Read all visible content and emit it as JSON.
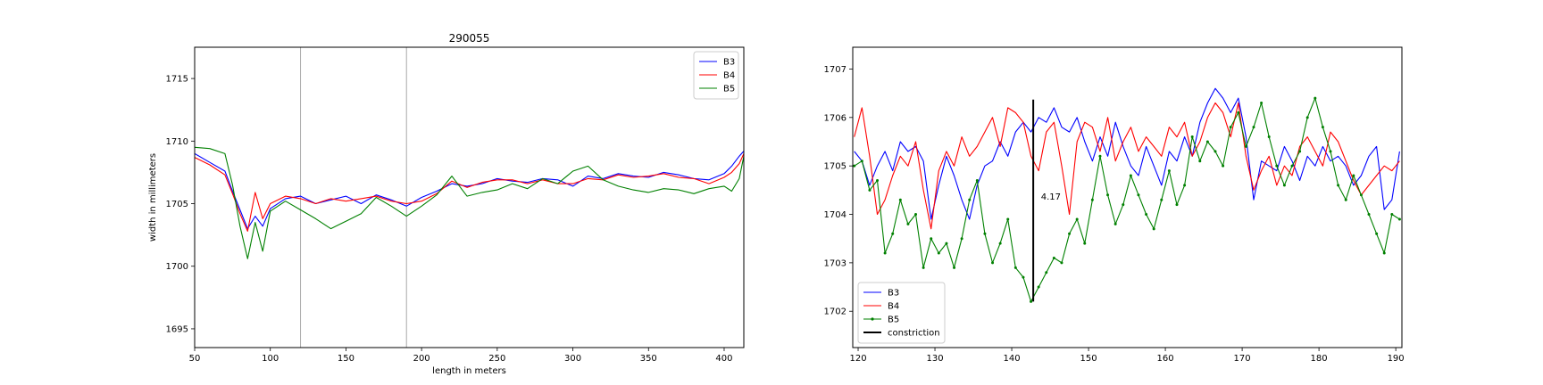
{
  "chart_data": [
    {
      "type": "line",
      "title": "290055",
      "xlabel": "length in meters",
      "ylabel": "width in millimeters",
      "xlim": [
        50,
        413
      ],
      "ylim": [
        1693.5,
        1717.5
      ],
      "xticks": [
        50,
        100,
        150,
        200,
        250,
        300,
        350,
        400
      ],
      "yticks": [
        1695,
        1700,
        1705,
        1710,
        1715
      ],
      "xtick_labels": [
        "50",
        "100",
        "150",
        "200",
        "250",
        "300",
        "350",
        "400"
      ],
      "ytick_labels": [
        "1695",
        "1700",
        "1705",
        "1710",
        "1715"
      ],
      "vlines": [
        120,
        190
      ],
      "grid": false,
      "legend_position": "top-right",
      "series": [
        {
          "name": "B3",
          "color": "#0000ff",
          "x": [
            50,
            60,
            70,
            75,
            80,
            85,
            90,
            95,
            100,
            110,
            120,
            130,
            140,
            150,
            160,
            170,
            180,
            190,
            200,
            210,
            220,
            230,
            240,
            250,
            260,
            270,
            280,
            290,
            300,
            310,
            320,
            330,
            340,
            350,
            360,
            370,
            380,
            390,
            400,
            405,
            410,
            413
          ],
          "values": [
            1709.0,
            1708.3,
            1707.6,
            1706.0,
            1704.5,
            1703.0,
            1704.0,
            1703.2,
            1704.6,
            1705.4,
            1705.6,
            1705.0,
            1705.3,
            1705.6,
            1705.0,
            1705.7,
            1705.3,
            1704.8,
            1705.5,
            1706.0,
            1706.6,
            1706.4,
            1706.6,
            1707.0,
            1706.8,
            1706.7,
            1707.0,
            1706.9,
            1706.4,
            1707.2,
            1707.0,
            1707.4,
            1707.2,
            1707.1,
            1707.5,
            1707.3,
            1707.0,
            1706.9,
            1707.4,
            1708.0,
            1708.8,
            1709.2
          ]
        },
        {
          "name": "B4",
          "color": "#ff0000",
          "x": [
            50,
            60,
            70,
            75,
            80,
            85,
            90,
            95,
            100,
            110,
            120,
            130,
            140,
            150,
            160,
            170,
            180,
            190,
            200,
            210,
            220,
            230,
            240,
            250,
            260,
            270,
            280,
            290,
            300,
            310,
            320,
            330,
            340,
            350,
            360,
            370,
            380,
            390,
            400,
            405,
            410,
            413
          ],
          "values": [
            1708.7,
            1708.1,
            1707.3,
            1705.8,
            1704.2,
            1702.8,
            1705.9,
            1703.8,
            1705.0,
            1705.6,
            1705.4,
            1705.0,
            1705.4,
            1705.2,
            1705.4,
            1705.6,
            1705.2,
            1705.0,
            1705.2,
            1705.8,
            1706.8,
            1706.3,
            1706.7,
            1706.9,
            1706.9,
            1706.6,
            1706.9,
            1706.6,
            1706.6,
            1707.0,
            1706.9,
            1707.3,
            1707.1,
            1707.2,
            1707.4,
            1707.1,
            1707.0,
            1706.6,
            1707.1,
            1707.5,
            1708.2,
            1709.0
          ]
        },
        {
          "name": "B5",
          "color": "#008000",
          "x": [
            50,
            60,
            70,
            75,
            80,
            85,
            90,
            95,
            100,
            110,
            120,
            130,
            140,
            150,
            160,
            170,
            180,
            190,
            200,
            210,
            220,
            230,
            240,
            250,
            260,
            270,
            280,
            290,
            300,
            310,
            320,
            330,
            340,
            350,
            360,
            370,
            380,
            390,
            400,
            405,
            410,
            413
          ],
          "values": [
            1709.5,
            1709.4,
            1709.0,
            1706.5,
            1703.2,
            1700.6,
            1703.5,
            1701.2,
            1704.4,
            1705.2,
            1704.5,
            1703.8,
            1703.0,
            1703.6,
            1704.2,
            1705.5,
            1704.8,
            1704.0,
            1704.8,
            1705.7,
            1707.2,
            1705.6,
            1705.9,
            1706.1,
            1706.6,
            1706.2,
            1707.0,
            1706.6,
            1707.6,
            1708.0,
            1706.9,
            1706.4,
            1706.1,
            1705.9,
            1706.2,
            1706.1,
            1705.8,
            1706.2,
            1706.4,
            1706.0,
            1707.0,
            1708.8
          ]
        }
      ]
    },
    {
      "type": "line",
      "title": "",
      "xlabel": "",
      "ylabel": "",
      "xlim": [
        119.3,
        190.8
      ],
      "ylim": [
        1701.25,
        1707.45
      ],
      "xticks": [
        120,
        130,
        140,
        150,
        160,
        170,
        180,
        190
      ],
      "yticks": [
        1702,
        1703,
        1704,
        1705,
        1706,
        1707
      ],
      "xtick_labels": [
        "120",
        "130",
        "140",
        "150",
        "160",
        "170",
        "180",
        "190"
      ],
      "ytick_labels": [
        "1702",
        "1703",
        "1704",
        "1705",
        "1706",
        "1707"
      ],
      "grid": false,
      "legend_position": "bottom-left",
      "annotation": {
        "text": "4.17",
        "x": 143.8,
        "y": 1704.3
      },
      "constriction": {
        "name": "constriction",
        "x": 142.8,
        "y_from": 1702.2,
        "y_to": 1706.37,
        "color": "#000000"
      },
      "series": [
        {
          "name": "B3",
          "color": "#0000ff",
          "markers": false,
          "x": [
            119.5,
            120.5,
            121.5,
            122.5,
            123.5,
            124.5,
            125.5,
            126.5,
            127.5,
            128.5,
            129.5,
            130.5,
            131.5,
            132.5,
            133.5,
            134.5,
            135.5,
            136.5,
            137.5,
            138.5,
            139.5,
            140.5,
            141.5,
            142.5,
            143.5,
            144.5,
            145.5,
            146.5,
            147.5,
            148.5,
            149.5,
            150.5,
            151.5,
            152.5,
            153.5,
            154.5,
            155.5,
            156.5,
            157.5,
            158.5,
            159.5,
            160.5,
            161.5,
            162.5,
            163.5,
            164.5,
            165.5,
            166.5,
            167.5,
            168.5,
            169.5,
            170.5,
            171.5,
            172.5,
            173.5,
            174.5,
            175.5,
            176.5,
            177.5,
            178.5,
            179.5,
            180.5,
            181.5,
            182.5,
            183.5,
            184.5,
            185.5,
            186.5,
            187.5,
            188.5,
            189.5,
            190.5
          ],
          "values": [
            1705.3,
            1705.1,
            1704.6,
            1705.0,
            1705.3,
            1704.9,
            1705.5,
            1705.3,
            1705.4,
            1705.1,
            1703.9,
            1704.6,
            1705.2,
            1704.8,
            1704.3,
            1703.9,
            1704.6,
            1705.0,
            1705.1,
            1705.5,
            1705.2,
            1705.7,
            1705.9,
            1705.7,
            1706.0,
            1705.9,
            1706.2,
            1705.8,
            1705.7,
            1706.0,
            1705.5,
            1705.1,
            1705.6,
            1705.2,
            1705.9,
            1705.4,
            1705.0,
            1704.8,
            1705.4,
            1705.0,
            1704.6,
            1705.3,
            1705.1,
            1705.6,
            1705.2,
            1705.9,
            1706.3,
            1706.6,
            1706.4,
            1706.1,
            1706.4,
            1705.6,
            1704.3,
            1705.1,
            1705.0,
            1704.9,
            1705.4,
            1705.1,
            1704.7,
            1705.2,
            1705.0,
            1705.4,
            1705.1,
            1705.2,
            1705.0,
            1704.6,
            1704.8,
            1705.2,
            1705.4,
            1704.1,
            1704.3,
            1705.3
          ]
        },
        {
          "name": "B4",
          "color": "#ff0000",
          "markers": false,
          "x": [
            119.5,
            120.5,
            121.5,
            122.5,
            123.5,
            124.5,
            125.5,
            126.5,
            127.5,
            128.5,
            129.5,
            130.5,
            131.5,
            132.5,
            133.5,
            134.5,
            135.5,
            136.5,
            137.5,
            138.5,
            139.5,
            140.5,
            141.5,
            142.5,
            143.5,
            144.5,
            145.5,
            146.5,
            147.5,
            148.5,
            149.5,
            150.5,
            151.5,
            152.5,
            153.5,
            154.5,
            155.5,
            156.5,
            157.5,
            158.5,
            159.5,
            160.5,
            161.5,
            162.5,
            163.5,
            164.5,
            165.5,
            166.5,
            167.5,
            168.5,
            169.5,
            170.5,
            171.5,
            172.5,
            173.5,
            174.5,
            175.5,
            176.5,
            177.5,
            178.5,
            179.5,
            180.5,
            181.5,
            182.5,
            183.5,
            184.5,
            185.5,
            186.5,
            187.5,
            188.5,
            189.5,
            190.5
          ],
          "values": [
            1705.6,
            1706.2,
            1705.2,
            1704.0,
            1704.3,
            1704.8,
            1705.2,
            1705.0,
            1705.5,
            1704.5,
            1703.7,
            1704.9,
            1705.3,
            1705.0,
            1705.6,
            1705.2,
            1705.4,
            1705.7,
            1706.0,
            1705.4,
            1706.2,
            1706.1,
            1705.9,
            1705.2,
            1704.9,
            1705.7,
            1705.9,
            1705.0,
            1704.0,
            1705.5,
            1705.9,
            1705.8,
            1705.3,
            1706.0,
            1705.1,
            1705.5,
            1705.8,
            1705.3,
            1705.6,
            1705.4,
            1705.2,
            1705.8,
            1705.6,
            1705.9,
            1705.2,
            1705.5,
            1706.0,
            1706.3,
            1706.1,
            1705.6,
            1706.3,
            1705.2,
            1704.5,
            1704.9,
            1705.2,
            1704.6,
            1705.0,
            1704.8,
            1705.4,
            1705.6,
            1705.3,
            1705.0,
            1705.7,
            1705.5,
            1705.1,
            1704.7,
            1704.4,
            1704.6,
            1704.8,
            1705.0,
            1704.9,
            1705.1
          ]
        },
        {
          "name": "B5",
          "color": "#008000",
          "markers": true,
          "x": [
            119.5,
            120.5,
            121.5,
            122.5,
            123.5,
            124.5,
            125.5,
            126.5,
            127.5,
            128.5,
            129.5,
            130.5,
            131.5,
            132.5,
            133.5,
            134.5,
            135.5,
            136.5,
            137.5,
            138.5,
            139.5,
            140.5,
            141.5,
            142.5,
            143.5,
            144.5,
            145.5,
            146.5,
            147.5,
            148.5,
            149.5,
            150.5,
            151.5,
            152.5,
            153.5,
            154.5,
            155.5,
            156.5,
            157.5,
            158.5,
            159.5,
            160.5,
            161.5,
            162.5,
            163.5,
            164.5,
            165.5,
            166.5,
            167.5,
            168.5,
            169.5,
            170.5,
            171.5,
            172.5,
            173.5,
            174.5,
            175.5,
            176.5,
            177.5,
            178.5,
            179.5,
            180.5,
            181.5,
            182.5,
            183.5,
            184.5,
            185.5,
            186.5,
            187.5,
            188.5,
            189.5,
            190.5
          ],
          "values": [
            1705.0,
            1705.1,
            1704.5,
            1704.7,
            1703.2,
            1703.6,
            1704.3,
            1703.8,
            1704.0,
            1702.9,
            1703.5,
            1703.2,
            1703.4,
            1702.9,
            1703.5,
            1704.3,
            1704.7,
            1703.6,
            1703.0,
            1703.4,
            1703.9,
            1702.9,
            1702.7,
            1702.2,
            1702.5,
            1702.8,
            1703.1,
            1703.0,
            1703.6,
            1703.9,
            1703.4,
            1704.3,
            1705.2,
            1704.4,
            1703.8,
            1704.2,
            1704.8,
            1704.4,
            1704.0,
            1703.7,
            1704.3,
            1704.9,
            1704.2,
            1704.6,
            1705.6,
            1705.1,
            1705.5,
            1705.3,
            1705.0,
            1705.8,
            1706.1,
            1705.4,
            1705.8,
            1706.3,
            1705.6,
            1705.0,
            1704.6,
            1705.0,
            1705.3,
            1706.0,
            1706.4,
            1705.8,
            1705.3,
            1704.6,
            1704.3,
            1704.8,
            1704.4,
            1704.0,
            1703.6,
            1703.2,
            1704.0,
            1703.9
          ]
        }
      ]
    }
  ]
}
